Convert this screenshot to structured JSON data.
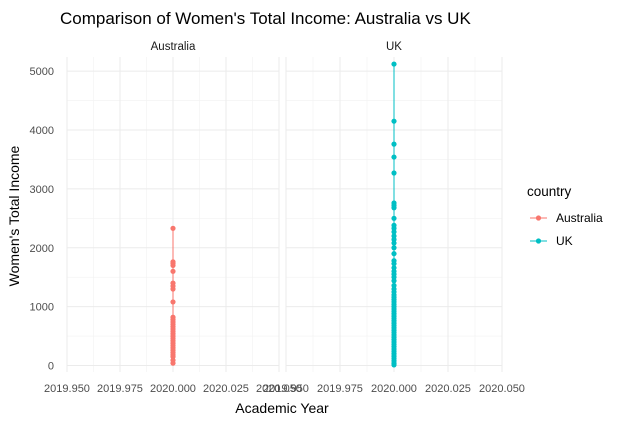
{
  "chart_data": {
    "type": "line",
    "title": "Comparison of Women's Total Income: Australia vs UK",
    "xlabel": "Academic Year",
    "ylabel": "Women's Total Income",
    "facets": [
      "Australia",
      "UK"
    ],
    "x_ticks": [
      "2019.950",
      "2019.975",
      "2020.000",
      "2020.025",
      "2020.050"
    ],
    "xlim": [
      2019.95,
      2020.05
    ],
    "y_ticks": [
      0,
      1000,
      2000,
      3000,
      4000,
      5000
    ],
    "ylim": [
      -110,
      5240
    ],
    "grid": true,
    "legend": {
      "title": "country",
      "position": "right"
    },
    "series": [
      {
        "name": "Australia",
        "facet": "Australia",
        "color": "#F8766D",
        "x": 2020.0,
        "values": [
          2330,
          1760,
          1740,
          1700,
          1600,
          1400,
          1350,
          1300,
          1080,
          820,
          780,
          740,
          700,
          660,
          620,
          580,
          540,
          500,
          460,
          420,
          380,
          340,
          300,
          260,
          220,
          180,
          150,
          90,
          40
        ]
      },
      {
        "name": "UK",
        "facet": "UK",
        "color": "#00BFC4",
        "x": 2020.0,
        "values": [
          5120,
          4150,
          3760,
          3540,
          3270,
          2760,
          2720,
          2680,
          2500,
          2380,
          2330,
          2270,
          2200,
          2140,
          2080,
          2000,
          1900,
          1780,
          1730,
          1660,
          1600,
          1550,
          1500,
          1440,
          1360,
          1300,
          1250,
          1200,
          1160,
          1120,
          1080,
          1040,
          1000,
          960,
          920,
          880,
          840,
          800,
          760,
          720,
          680,
          640,
          600,
          560,
          520,
          480,
          440,
          400,
          360,
          320,
          280,
          240,
          200,
          160,
          120,
          80,
          40,
          10
        ]
      }
    ]
  }
}
